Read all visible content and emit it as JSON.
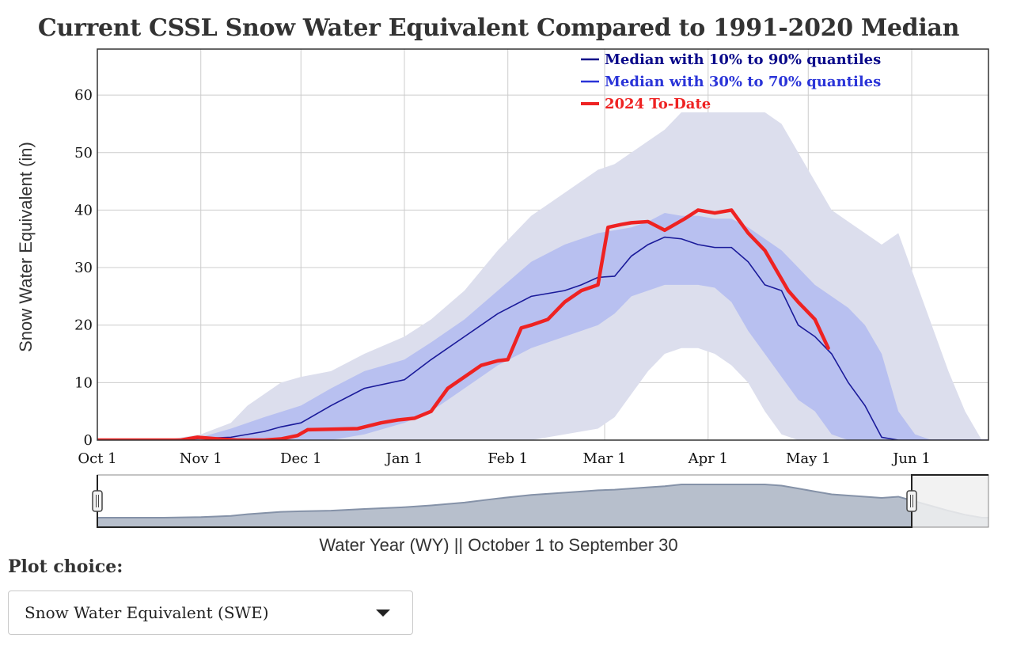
{
  "title": "Current CSSL Snow Water Equivalent Compared to 1991-2020 Median",
  "plot_choice": {
    "label": "Plot choice:",
    "selected": "Snow Water Equivalent (SWE)"
  },
  "colors": {
    "band_10_90": "#dcdeed",
    "band_30_70": "#b8c0f0",
    "median": "#1a1a9a",
    "current": "#ee2222",
    "grid": "#cccccc",
    "legend_median_10_90": "#0a0a8a",
    "legend_median_30_70": "#2a34d8",
    "legend_current": "#ee2222",
    "range_fill": "#b7bfcc",
    "range_line": "#8592a8"
  },
  "chart_data": {
    "type": "area",
    "xlabel": "Water Year (WY) || October 1 to September 30",
    "ylabel": "Snow Water Equivalent (in)",
    "x_axis": {
      "range": [
        0,
        267
      ],
      "ticks": [
        {
          "label": "Oct 1",
          "day": 0
        },
        {
          "label": "Nov 1",
          "day": 31
        },
        {
          "label": "Dec 1",
          "day": 61
        },
        {
          "label": "Jan 1",
          "day": 92
        },
        {
          "label": "Feb 1",
          "day": 123
        },
        {
          "label": "Mar 1",
          "day": 152
        },
        {
          "label": "Apr 1",
          "day": 183
        },
        {
          "label": "May 1",
          "day": 213
        },
        {
          "label": "Jun 1",
          "day": 244
        }
      ]
    },
    "y_axis": {
      "range": [
        0,
        68
      ],
      "ticks": [
        0,
        10,
        20,
        30,
        40,
        50,
        60
      ]
    },
    "grid": true,
    "legend_position": "top-right",
    "legend": [
      {
        "label": "Median with 10% to 90% quantiles",
        "key": "median_10_90"
      },
      {
        "label": "Median with 30% to 70% quantiles",
        "key": "median_30_70"
      },
      {
        "label": "2024 To-Date",
        "key": "current"
      }
    ],
    "series": [
      {
        "name": "Median",
        "x": [
          0,
          25,
          31,
          40,
          50,
          55,
          61,
          70,
          80,
          92,
          100,
          110,
          120,
          130,
          140,
          145,
          150,
          155,
          160,
          165,
          170,
          175,
          180,
          185,
          190,
          195,
          200,
          205,
          210,
          215,
          220,
          225,
          230,
          235,
          240,
          245,
          267
        ],
        "y": [
          0,
          0,
          0.3,
          0.5,
          1.5,
          2.3,
          3,
          6,
          9,
          10.5,
          14,
          18,
          22,
          25,
          26,
          27,
          28.3,
          28.5,
          32,
          34,
          35.3,
          35,
          34,
          33.5,
          33.5,
          31,
          27,
          26,
          20,
          18,
          15,
          10,
          6,
          0.5,
          0,
          0,
          0
        ]
      },
      {
        "name": "2024 To-Date",
        "x": [
          0,
          25,
          30,
          36,
          42,
          50,
          55,
          60,
          63,
          70,
          78,
          85,
          90,
          95,
          100,
          105,
          110,
          115,
          120,
          123,
          127,
          130,
          135,
          140,
          145,
          150,
          153,
          157,
          160,
          165,
          170,
          173,
          176,
          180,
          185,
          190,
          195,
          200,
          203,
          207,
          210,
          215,
          219
        ],
        "y": [
          0,
          0,
          0.5,
          0.2,
          0,
          0,
          0.2,
          0.8,
          1.8,
          1.9,
          2,
          3,
          3.5,
          3.8,
          5,
          9,
          11,
          13,
          13.8,
          14,
          19.5,
          20,
          21,
          24,
          26,
          27,
          37,
          37.5,
          37.8,
          38,
          36.5,
          37.5,
          38.5,
          40,
          39.5,
          40,
          36,
          33,
          30,
          26,
          24,
          21,
          16
        ]
      },
      {
        "name": "10% to 90% quantiles",
        "x": [
          0,
          20,
          31,
          40,
          45,
          55,
          61,
          70,
          80,
          92,
          100,
          110,
          120,
          130,
          140,
          150,
          155,
          160,
          165,
          170,
          175,
          180,
          185,
          190,
          195,
          200,
          205,
          210,
          215,
          220,
          225,
          230,
          235,
          240,
          245,
          250,
          255,
          260,
          265,
          267
        ],
        "lower": [
          0,
          0,
          0,
          0,
          0,
          0,
          0,
          0,
          0,
          0,
          0,
          0,
          0,
          0,
          1,
          2,
          4,
          8,
          12,
          15,
          16,
          16,
          15,
          13,
          10,
          5,
          1,
          0,
          0,
          0,
          0,
          0,
          0,
          0,
          0,
          0,
          0,
          0,
          0,
          0
        ],
        "upper": [
          0,
          0,
          1,
          3,
          6,
          10,
          11,
          12,
          15,
          18,
          21,
          26,
          33,
          39,
          43,
          47,
          48,
          50,
          52,
          54,
          57,
          57,
          57,
          57,
          57,
          57,
          55,
          50,
          45,
          40,
          38,
          36,
          34,
          36,
          28,
          20,
          12,
          5,
          0,
          0
        ]
      },
      {
        "name": "30% to 70% quantiles",
        "x": [
          0,
          25,
          31,
          40,
          50,
          61,
          70,
          80,
          92,
          100,
          110,
          120,
          130,
          140,
          150,
          155,
          160,
          165,
          170,
          175,
          180,
          185,
          190,
          195,
          200,
          205,
          210,
          215,
          220,
          225,
          230,
          235,
          240,
          245,
          250
        ],
        "lower": [
          0,
          0,
          0,
          0,
          0,
          0,
          0,
          1,
          3,
          5,
          9,
          13,
          16,
          18,
          20,
          22,
          25,
          26,
          27,
          27,
          27,
          26.5,
          24,
          19,
          15,
          11,
          7,
          5,
          1,
          0,
          0,
          0,
          0,
          0,
          0
        ],
        "upper": [
          0,
          0,
          0.5,
          2,
          4,
          6,
          9,
          12,
          14,
          17,
          21,
          26,
          31,
          34,
          36,
          36.5,
          37,
          38,
          39.5,
          39,
          39,
          38.5,
          38.5,
          37,
          35,
          33,
          30,
          27,
          25,
          23,
          20,
          15,
          5,
          1,
          0
        ]
      }
    ],
    "range_slider": {
      "selected_range": [
        0,
        244
      ]
    }
  }
}
